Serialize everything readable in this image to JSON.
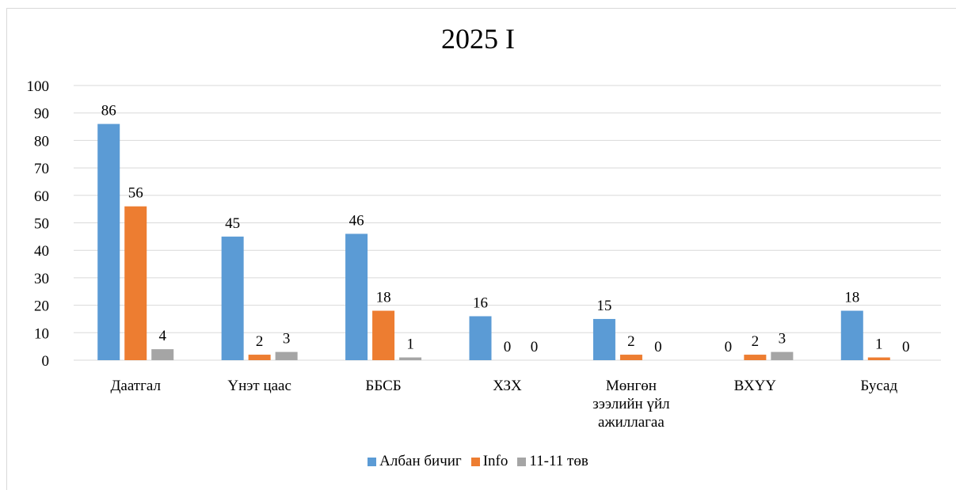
{
  "chart_data": {
    "type": "bar",
    "title": "2025 I",
    "categories": [
      "Даатгал",
      "Үнэт цаас",
      "ББСБ",
      "ХЗХ",
      "Мөнгөн зээлийн үйл ажиллагаа",
      "ВХҮҮ",
      "Бусад"
    ],
    "category_lines": [
      [
        "Даатгал"
      ],
      [
        "Үнэт цаас"
      ],
      [
        "ББСБ"
      ],
      [
        "ХЗХ"
      ],
      [
        "Мөнгөн",
        "зээлийн үйл",
        "ажиллагаа"
      ],
      [
        "ВХҮҮ"
      ],
      [
        "Бусад"
      ]
    ],
    "series": [
      {
        "name": "Албан бичиг",
        "values": [
          86,
          45,
          46,
          16,
          15,
          0,
          18
        ],
        "color": "#5b9bd5"
      },
      {
        "name": "Info",
        "values": [
          56,
          2,
          18,
          0,
          2,
          2,
          1
        ],
        "color": "#ed7d31"
      },
      {
        "name": "11-11 төв",
        "values": [
          4,
          3,
          1,
          0,
          0,
          3,
          0
        ],
        "color": "#a5a5a5"
      }
    ],
    "ylim": [
      0,
      100
    ],
    "yticks": [
      0,
      10,
      20,
      30,
      40,
      50,
      60,
      70,
      80,
      90,
      100
    ],
    "grid": true,
    "legend_position": "bottom",
    "data_labels": true
  }
}
